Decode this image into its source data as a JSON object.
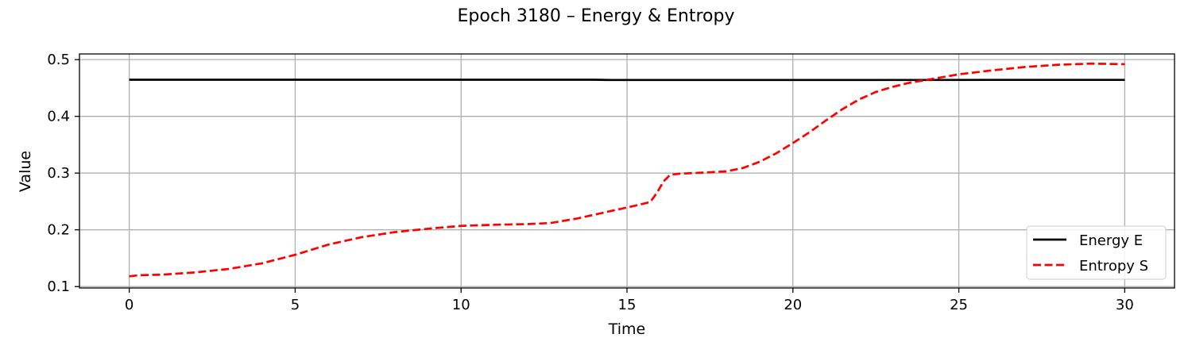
{
  "chart_data": {
    "type": "line",
    "title": "Epoch 3180 – Energy & Entropy",
    "xlabel": "Time",
    "ylabel": "Value",
    "xlim": [
      -1.5,
      31.5
    ],
    "ylim": [
      0.0975,
      0.51
    ],
    "xticks": [
      0,
      5,
      10,
      15,
      20,
      25,
      30
    ],
    "yticks": [
      0.1,
      0.2,
      0.3,
      0.4,
      0.5
    ],
    "grid": true,
    "legend": "lower-right",
    "series": [
      {
        "name": "Energy E",
        "color": "#000000",
        "style": "solid",
        "x": [
          0,
          5,
          10,
          13,
          14,
          14.5,
          15,
          16,
          18,
          20,
          22,
          24,
          26,
          28,
          30
        ],
        "y": [
          0.4645,
          0.4645,
          0.4645,
          0.4645,
          0.4646,
          0.4642,
          0.4641,
          0.4641,
          0.4641,
          0.4641,
          0.4641,
          0.4642,
          0.4643,
          0.4643,
          0.4643
        ]
      },
      {
        "name": "Entropy S",
        "color": "#ff0000",
        "style": "dashed",
        "x": [
          0,
          0.3,
          1,
          2,
          3,
          4,
          5,
          6,
          7,
          8,
          9,
          10,
          11,
          12,
          12.7,
          13.5,
          14.5,
          15.2,
          15.7,
          15.9,
          16.1,
          16.3,
          16.6,
          17,
          18,
          18.5,
          19,
          19.5,
          20,
          20.5,
          21,
          21.5,
          22,
          22.5,
          23,
          23.5,
          24,
          24.5,
          25,
          26,
          27,
          28,
          29,
          30
        ],
        "y": [
          0.118,
          0.12,
          0.121,
          0.125,
          0.131,
          0.141,
          0.156,
          0.174,
          0.187,
          0.196,
          0.202,
          0.207,
          0.209,
          0.21,
          0.212,
          0.22,
          0.233,
          0.242,
          0.249,
          0.265,
          0.285,
          0.297,
          0.299,
          0.3,
          0.303,
          0.309,
          0.32,
          0.335,
          0.353,
          0.372,
          0.393,
          0.413,
          0.43,
          0.443,
          0.452,
          0.459,
          0.464,
          0.469,
          0.474,
          0.481,
          0.487,
          0.491,
          0.493,
          0.492
        ]
      }
    ]
  }
}
